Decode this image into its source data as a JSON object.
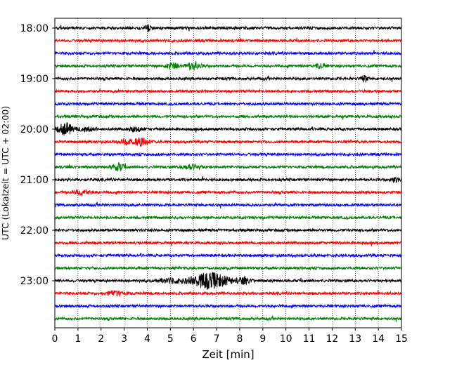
{
  "chart_data": {
    "type": "line",
    "title": "",
    "xlabel": "Zeit  [min]",
    "ylabel": "UTC (Lokalzeit = UTC + 02:00)",
    "xlim": [
      0,
      15
    ],
    "x_ticks": [
      "0",
      "1",
      "2",
      "3",
      "4",
      "5",
      "6",
      "7",
      "8",
      "9",
      "10",
      "11",
      "12",
      "13",
      "14",
      "15"
    ],
    "y_ticks": [
      "18:00",
      "19:00",
      "20:00",
      "21:00",
      "22:00",
      "23:00"
    ],
    "trace_interval_min": 15,
    "grid": "vertical dotted at each minute",
    "colors": [
      "#000000",
      "#ff0000",
      "#0000ff",
      "#008000"
    ],
    "traces": [
      {
        "start": "18:00",
        "color": "#000000"
      },
      {
        "start": "18:15",
        "color": "#ff0000"
      },
      {
        "start": "18:30",
        "color": "#0000ff"
      },
      {
        "start": "18:45",
        "color": "#008000"
      },
      {
        "start": "19:00",
        "color": "#000000"
      },
      {
        "start": "19:15",
        "color": "#ff0000"
      },
      {
        "start": "19:30",
        "color": "#0000ff"
      },
      {
        "start": "19:45",
        "color": "#008000"
      },
      {
        "start": "20:00",
        "color": "#000000"
      },
      {
        "start": "20:15",
        "color": "#ff0000"
      },
      {
        "start": "20:30",
        "color": "#0000ff"
      },
      {
        "start": "20:45",
        "color": "#008000"
      },
      {
        "start": "21:00",
        "color": "#000000"
      },
      {
        "start": "21:15",
        "color": "#ff0000"
      },
      {
        "start": "21:30",
        "color": "#0000ff"
      },
      {
        "start": "21:45",
        "color": "#008000"
      },
      {
        "start": "22:00",
        "color": "#000000"
      },
      {
        "start": "22:15",
        "color": "#ff0000"
      },
      {
        "start": "22:30",
        "color": "#0000ff"
      },
      {
        "start": "22:45",
        "color": "#008000"
      },
      {
        "start": "23:00",
        "color": "#000000"
      },
      {
        "start": "23:15",
        "color": "#ff0000"
      },
      {
        "start": "23:30",
        "color": "#0000ff"
      },
      {
        "start": "23:45",
        "color": "#008000"
      }
    ]
  }
}
